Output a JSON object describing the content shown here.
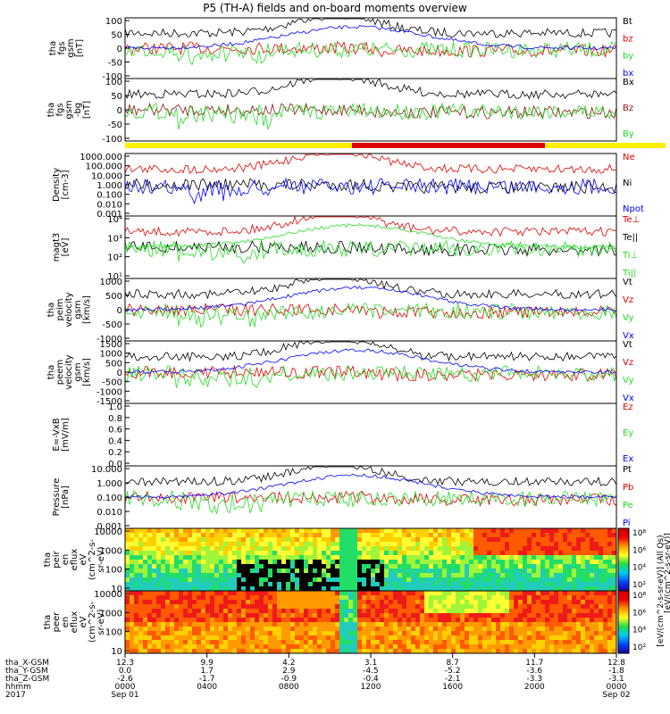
{
  "title": "P5 (TH-A) fields and on-board moments overview",
  "colors": {
    "black": "#000000",
    "red": "#e00000",
    "green": "#22dd22",
    "blue": "#0000ff",
    "darkred": "#8b1010",
    "yellow": "#ffee00",
    "barred": "#dd0000"
  },
  "chart_data": [
    {
      "panel": "tha_fgs_gsm",
      "type": "line",
      "ylabel": [
        "tha",
        "fgs",
        "gsm",
        "[nT]"
      ],
      "ylim": [
        -100,
        100
      ],
      "yticks": [
        "100",
        "50",
        "0",
        "-50",
        "-100"
      ],
      "series": [
        {
          "name": "Bt",
          "color": "#000000"
        },
        {
          "name": "bz",
          "color": "#e00000"
        },
        {
          "name": "by",
          "color": "#22dd22"
        },
        {
          "name": "bx",
          "color": "#0000ff"
        }
      ]
    },
    {
      "panel": "tha_fgs_gsm_-bg",
      "type": "line",
      "ylabel": [
        "tha",
        "fgs",
        "gsm",
        "-bg",
        "[nT]"
      ],
      "ylim": [
        -125,
        125
      ],
      "yticks": [
        "100",
        "50",
        "0",
        "-50",
        "-100"
      ],
      "series": [
        {
          "name": "Bx",
          "color": "#000000"
        },
        {
          "name": "Bz",
          "color": "#8b1010"
        },
        {
          "name": "By",
          "color": "#22dd22"
        }
      ]
    },
    {
      "panel": "density",
      "type": "line",
      "scale": "log",
      "ylabel": [
        "Density",
        "[cm-3]"
      ],
      "yticks": [
        "1000.000",
        "100.000",
        "10.000",
        "1.000",
        "0.100",
        "0.010",
        "0.001"
      ],
      "series": [
        {
          "name": "Ne",
          "color": "#e00000"
        },
        {
          "name": "Ni",
          "color": "#000000"
        },
        {
          "name": "Npot",
          "color": "#0000ff"
        }
      ]
    },
    {
      "panel": "temperature",
      "type": "line",
      "scale": "log",
      "ylabel": [
        "magt3",
        "[eV]"
      ],
      "yticks": [
        "10⁴",
        "10³",
        "10²",
        "10¹"
      ],
      "series": [
        {
          "name": "Te⊥",
          "color": "#e00000"
        },
        {
          "name": "Te||",
          "color": "#000000"
        },
        {
          "name": "Ti⊥",
          "color": "#22dd22"
        },
        {
          "name": "Ti||",
          "color": "#22dd22"
        }
      ]
    },
    {
      "panel": "tha_peim_velocity_gsm",
      "type": "line",
      "ylabel": [
        "tha",
        "peim",
        "velocity",
        "gsm",
        "[km/s]"
      ],
      "ylim": [
        -1000,
        1000
      ],
      "yticks": [
        "1000",
        "500",
        "0",
        "-500",
        "-1000"
      ],
      "series": [
        {
          "name": "Vt",
          "color": "#000000"
        },
        {
          "name": "Vz",
          "color": "#e00000"
        },
        {
          "name": "Vy",
          "color": "#22dd22"
        },
        {
          "name": "Vx",
          "color": "#0000ff"
        }
      ]
    },
    {
      "panel": "tha_peem_velocity_gsm",
      "type": "line",
      "ylabel": [
        "tha",
        "peem",
        "velocity",
        "gsm",
        "[km/s]"
      ],
      "ylim": [
        -1500,
        1500
      ],
      "yticks": [
        "1500",
        "1000",
        "500",
        "0",
        "-500",
        "-1000",
        "-1500"
      ],
      "series": [
        {
          "name": "Vt",
          "color": "#000000"
        },
        {
          "name": "Vz",
          "color": "#e00000"
        },
        {
          "name": "Vy",
          "color": "#22dd22"
        },
        {
          "name": "Vx",
          "color": "#0000ff"
        }
      ]
    },
    {
      "panel": "E_field",
      "type": "line",
      "ylabel": [
        "E=-VxB",
        "[mV/m]"
      ],
      "ylim": [
        0,
        1
      ],
      "yticks": [
        "1.0",
        "0.8",
        "0.6",
        "0.4",
        "0.2",
        "0.0"
      ],
      "series": [
        {
          "name": "Ez",
          "color": "#e00000"
        },
        {
          "name": "Ey",
          "color": "#22dd22"
        },
        {
          "name": "Ex",
          "color": "#0000ff"
        }
      ]
    },
    {
      "panel": "pressure",
      "type": "line",
      "scale": "log",
      "ylabel": [
        "Pressure",
        "[nPa]"
      ],
      "yticks": [
        "10.000",
        "1.000",
        "0.100",
        "0.010",
        "0.001"
      ],
      "series": [
        {
          "name": "Pt",
          "color": "#000000"
        },
        {
          "name": "Pb",
          "color": "#e00000"
        },
        {
          "name": "Pe",
          "color": "#22dd22"
        },
        {
          "name": "Pi",
          "color": "#0000ff"
        }
      ]
    },
    {
      "panel": "tha_peir_en_eflux",
      "type": "heatmap",
      "scale": "log",
      "ylabel": [
        "tha",
        "peir",
        "en",
        "eflux",
        "eV",
        "(cm^2-s-",
        "sr-eV)"
      ],
      "yticks": [
        "10000",
        "1000",
        "100",
        "10"
      ]
    },
    {
      "panel": "tha_peer_en_eflux",
      "type": "heatmap",
      "scale": "log",
      "ylabel": [
        "tha",
        "peer",
        "en",
        "eflux",
        "eV",
        "(cm^2-s-",
        "sr-eV)"
      ],
      "yticks": [
        "10000",
        "1000",
        "100",
        "10"
      ]
    }
  ],
  "colorbar": {
    "label": "[eV/(cm^2-s-sr-eV)] (All Qs)",
    "label2": "[eV/(cm^2-s-sr-eV)]",
    "ticks_top": [
      "10⁸",
      "10⁶",
      "10⁴",
      "10²"
    ],
    "ticks_bottom": [
      "10⁸",
      "10⁶",
      "10⁴",
      "10²"
    ]
  },
  "xaxis": {
    "row_labels": [
      "tha_X-GSM",
      "tha_Y-GSM",
      "tha_Z-GSM",
      "hhmm",
      "2017"
    ],
    "columns": [
      {
        "x": "12.3",
        "y": "0.0",
        "z": "-2.6",
        "hhmm": "0000",
        "date": "Sep 01"
      },
      {
        "x": "9.9",
        "y": "1.7",
        "z": "-1.7",
        "hhmm": "0400",
        "date": ""
      },
      {
        "x": "4.2",
        "y": "2.9",
        "z": "-0.9",
        "hhmm": "0800",
        "date": ""
      },
      {
        "x": "3.1",
        "y": "-4.5",
        "z": "-0.4",
        "hhmm": "1200",
        "date": ""
      },
      {
        "x": "8.7",
        "y": "-5.2",
        "z": "-2.1",
        "hhmm": "1600",
        "date": ""
      },
      {
        "x": "11.7",
        "y": "-3.6",
        "z": "-3.3",
        "hhmm": "2000",
        "date": ""
      },
      {
        "x": "12.8",
        "y": "-1.8",
        "z": "-3.1",
        "hhmm": "0000",
        "date": "Sep 02"
      }
    ]
  }
}
